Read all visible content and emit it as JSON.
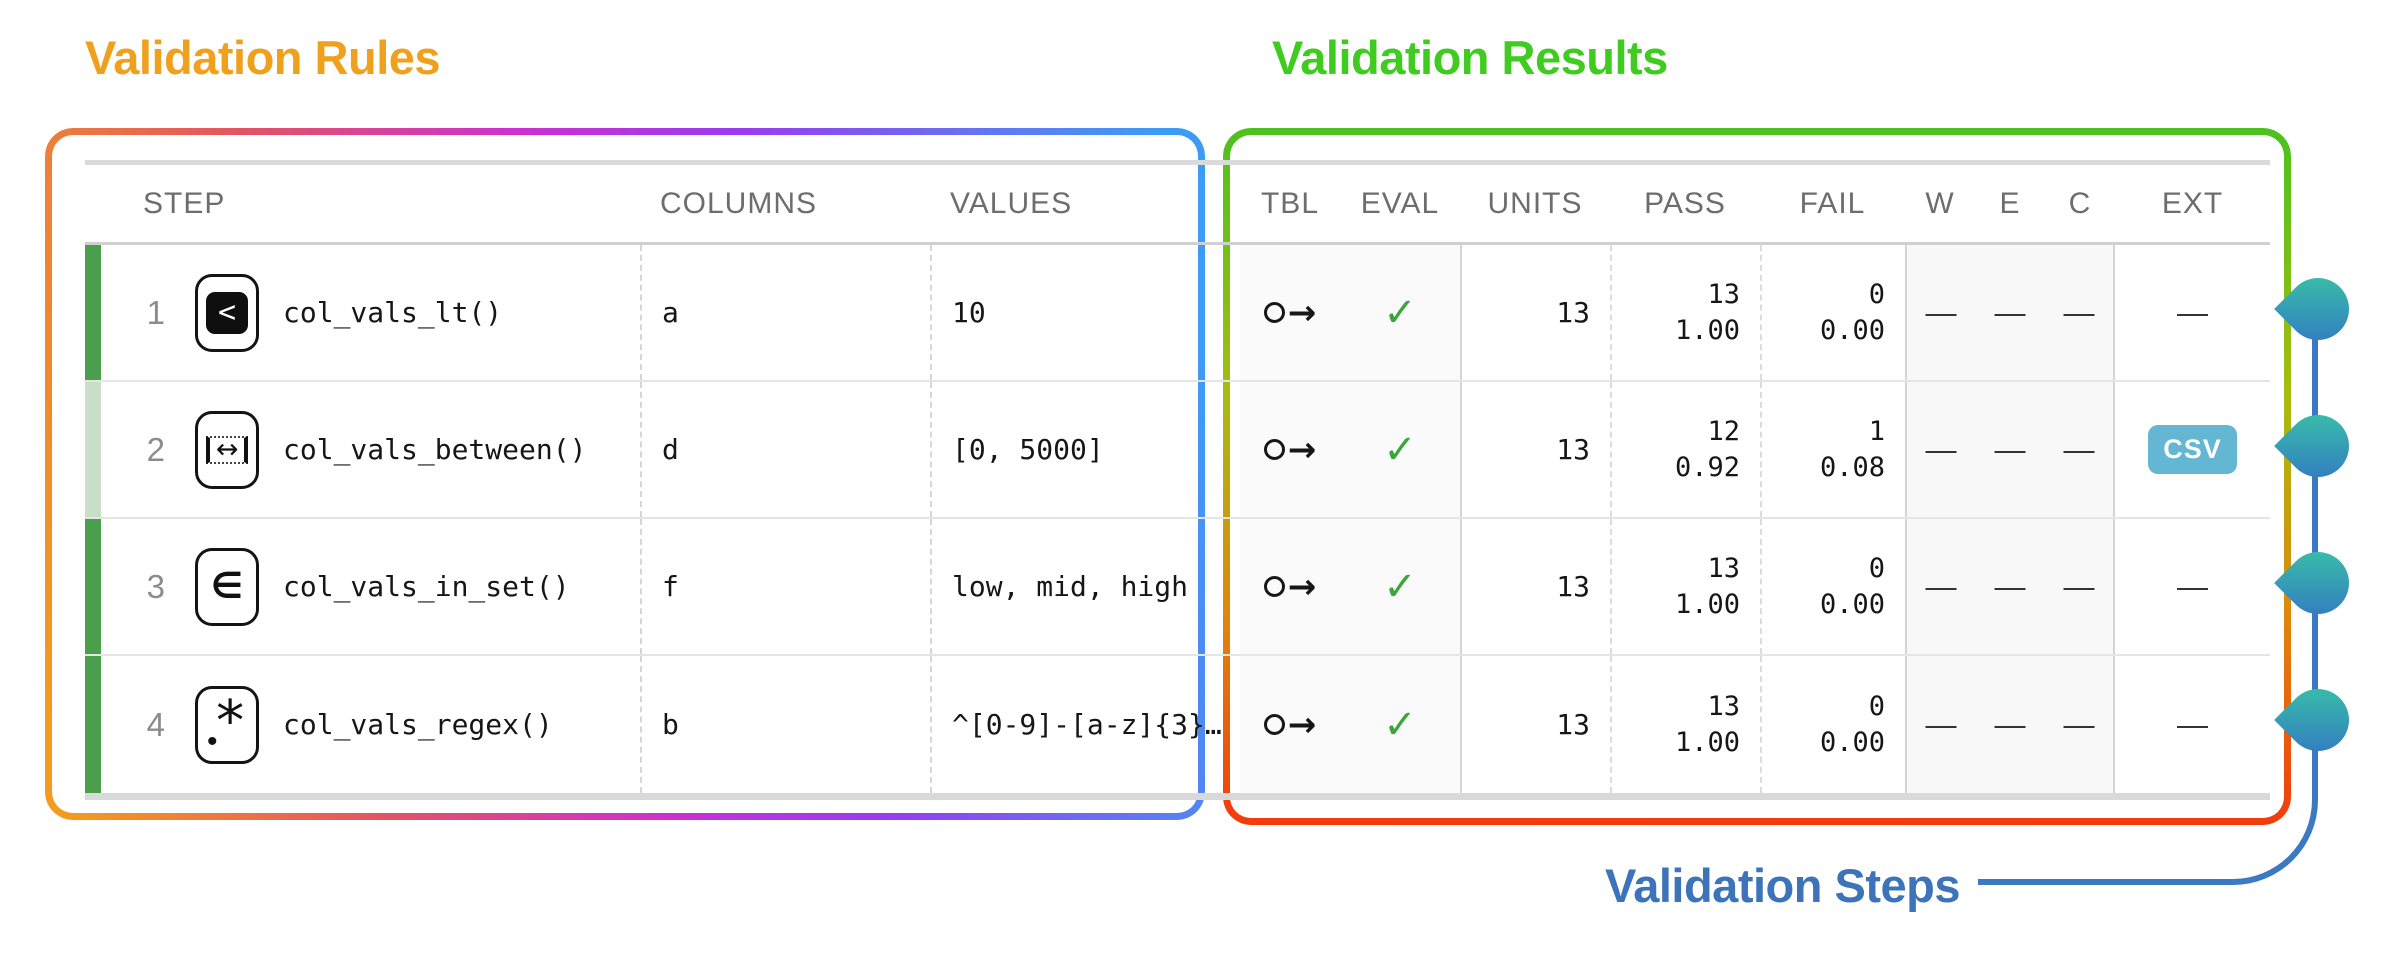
{
  "titles": {
    "rules": "Validation Rules",
    "results": "Validation Results",
    "steps": "Validation Steps"
  },
  "colors": {
    "rules_title": "#EFA11E",
    "results_title": "#3FCB20",
    "steps_title": "#3C73B9",
    "csv_badge": "#63B7D2",
    "check": "#3AA53A",
    "bar_full": "#4A9E4C",
    "bar_partial": "#C8DEC6",
    "connector": "#3B79C2",
    "droplet_top": "#39C7A4",
    "droplet_bottom": "#3274C5"
  },
  "icons": {
    "step_1": "less-than-icon",
    "step_2": "between-icon",
    "step_3": "in-set-icon",
    "step_4": "regex-icon",
    "tbl": "table-arrow-icon",
    "eval": "checkmark-icon",
    "marker": "droplet-marker-icon"
  },
  "table": {
    "headers": {
      "step": "STEP",
      "columns": "COLUMNS",
      "values": "VALUES",
      "tbl": "TBL",
      "eval": "EVAL",
      "units": "UNITS",
      "pass": "PASS",
      "fail": "FAIL",
      "w": "W",
      "e": "E",
      "c": "C",
      "ext": "EXT"
    },
    "rows": [
      {
        "step": "1",
        "procedure": "col_vals_lt()",
        "columns": "a",
        "values": "10",
        "eval": "✓",
        "units": "13",
        "pass_n": "13",
        "pass_f": "1.00",
        "fail_n": "0",
        "fail_f": "0.00",
        "w": "—",
        "e": "—",
        "c": "—",
        "ext": "—"
      },
      {
        "step": "2",
        "procedure": "col_vals_between()",
        "columns": "d",
        "values": "[0, 5000]",
        "eval": "✓",
        "units": "13",
        "pass_n": "12",
        "pass_f": "0.92",
        "fail_n": "1",
        "fail_f": "0.08",
        "w": "—",
        "e": "—",
        "c": "—",
        "ext": "CSV"
      },
      {
        "step": "3",
        "procedure": "col_vals_in_set()",
        "columns": "f",
        "values": "low, mid, high",
        "eval": "✓",
        "units": "13",
        "pass_n": "13",
        "pass_f": "1.00",
        "fail_n": "0",
        "fail_f": "0.00",
        "w": "—",
        "e": "—",
        "c": "—",
        "ext": "—"
      },
      {
        "step": "4",
        "procedure": "col_vals_regex()",
        "columns": "b",
        "values": "^[0-9]-[a-z]{3}…",
        "eval": "✓",
        "units": "13",
        "pass_n": "13",
        "pass_f": "1.00",
        "fail_n": "0",
        "fail_f": "0.00",
        "w": "—",
        "e": "—",
        "c": "—",
        "ext": "—"
      }
    ]
  }
}
